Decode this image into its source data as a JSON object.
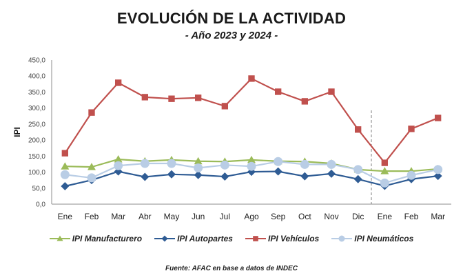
{
  "chart_data": {
    "type": "line",
    "title": "EVOLUCIÓN DE LA ACTIVIDAD",
    "subtitle": "- Año 2023 y 2024 -",
    "xlabel": "",
    "ylabel": "IPI",
    "ylim": [
      0,
      450
    ],
    "yticks": [
      0,
      50,
      100,
      150,
      200,
      250,
      300,
      350,
      400,
      450
    ],
    "ytick_labels": [
      "0,0",
      "50,0",
      "100,0",
      "150,0",
      "200,0",
      "250,0",
      "300,0",
      "350,0",
      "400,0",
      "450,0"
    ],
    "categories": [
      "Ene",
      "Feb",
      "Mar",
      "Abr",
      "May",
      "Jun",
      "Jul",
      "Ago",
      "Sep",
      "Oct",
      "Nov",
      "Dic",
      "Ene",
      "Feb",
      "Mar"
    ],
    "grid": false,
    "year_separator_after_index": 11,
    "legend_position": "bottom",
    "series": [
      {
        "name": "IPI Manufacturero",
        "color": "#9bbb59",
        "marker": "triangle",
        "values": [
          118,
          116,
          140,
          134,
          138,
          134,
          133,
          138,
          134,
          133,
          127,
          108,
          103,
          103,
          110
        ]
      },
      {
        "name": "IPI Autopartes",
        "color": "#2f5c94",
        "marker": "diamond",
        "values": [
          56,
          75,
          102,
          85,
          93,
          91,
          86,
          101,
          102,
          87,
          95,
          78,
          57,
          78,
          88
        ]
      },
      {
        "name": "IPI Vehículos",
        "color": "#c0504d",
        "marker": "square",
        "values": [
          159,
          286,
          379,
          334,
          329,
          332,
          306,
          392,
          351,
          321,
          351,
          233,
          129,
          235,
          269
        ]
      },
      {
        "name": "IPI Neumáticos",
        "color": "#b9cde5",
        "marker": "circle",
        "values": [
          92,
          82,
          120,
          127,
          127,
          113,
          122,
          118,
          133,
          124,
          124,
          108,
          66,
          90,
          108
        ]
      }
    ],
    "source": "Fuente: AFAC en base a datos de INDEC"
  }
}
